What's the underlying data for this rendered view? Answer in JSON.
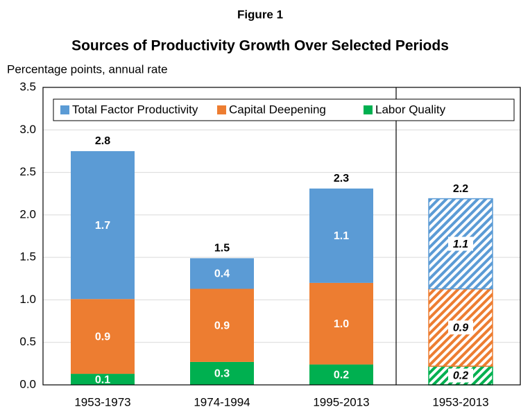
{
  "chart_data": {
    "type": "stacked_bar",
    "title": "Figure 1",
    "subtitle": "Sources of Productivity Growth Over Selected Periods",
    "y_label": "Percentage points, annual rate",
    "categories": [
      "1953-1973",
      "1974-1994",
      "1995-2013",
      "1953-2013"
    ],
    "series": [
      {
        "name": "Labor Quality",
        "color": "#00b050",
        "values": [
          0.13,
          0.27,
          0.24,
          0.22
        ],
        "value_labels": [
          "0.1",
          "0.3",
          "0.2",
          "0.2"
        ]
      },
      {
        "name": "Capital Deepening",
        "color": "#ed7d31",
        "values": [
          0.88,
          0.86,
          0.96,
          0.91
        ],
        "value_labels": [
          "0.9",
          "0.9",
          "1.0",
          "0.9"
        ]
      },
      {
        "name": "Total Factor Productivity",
        "color": "#5b9bd5",
        "values": [
          1.74,
          0.36,
          1.11,
          1.06
        ],
        "value_labels": [
          "1.7",
          "0.4",
          "1.1",
          "1.1"
        ]
      }
    ],
    "total_labels": [
      "2.8",
      "1.5",
      "2.3",
      "2.2"
    ],
    "hatched": [
      false,
      false,
      false,
      true
    ],
    "ylim": [
      0,
      3.5
    ],
    "yticks": [
      {
        "value": 0,
        "label": "0.0"
      },
      0.5,
      {
        "value": 1,
        "label": "1.0"
      },
      1.5,
      {
        "value": 2,
        "label": "2.0"
      },
      2.5,
      {
        "value": 3,
        "label": "3.0"
      },
      3.5
    ],
    "grid": true
  }
}
